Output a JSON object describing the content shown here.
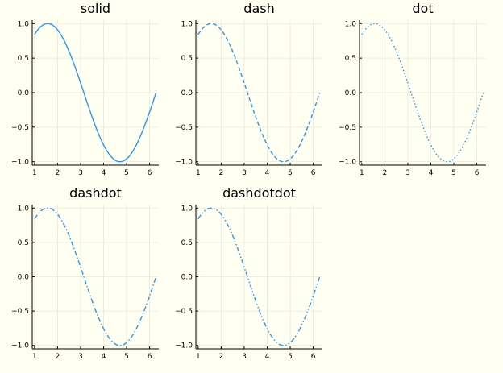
{
  "colors": {
    "series": "#2f96e6",
    "background": "#fffff2"
  },
  "chart_data": [
    {
      "type": "line",
      "title": "solid",
      "line_style": "solid",
      "x_function": "x",
      "y_function": "sin(x)",
      "x": [
        1.0,
        1.6,
        2.2,
        2.8,
        3.4,
        4.0,
        4.6,
        5.2,
        5.8,
        6.28
      ],
      "y": [
        0.84,
        1.0,
        0.81,
        0.33,
        -0.26,
        -0.76,
        -0.99,
        -0.88,
        -0.46,
        0.0
      ],
      "xlim": [
        0.9,
        6.4
      ],
      "ylim": [
        -1.05,
        1.05
      ],
      "xticks": [
        1,
        2,
        3,
        4,
        5,
        6
      ],
      "yticks": [
        -1.0,
        -0.5,
        0.0,
        0.5,
        1.0
      ],
      "xtick_labels": [
        "1",
        "2",
        "3",
        "4",
        "5",
        "6"
      ],
      "ytick_labels": [
        "−1.0",
        "−0.5",
        "0.0",
        "0.5",
        "1.0"
      ],
      "grid": true,
      "legend": false
    },
    {
      "type": "line",
      "title": "dash",
      "line_style": "dash",
      "x_function": "x",
      "y_function": "sin(x)",
      "x": [
        1.0,
        1.6,
        2.2,
        2.8,
        3.4,
        4.0,
        4.6,
        5.2,
        5.8,
        6.28
      ],
      "y": [
        0.84,
        1.0,
        0.81,
        0.33,
        -0.26,
        -0.76,
        -0.99,
        -0.88,
        -0.46,
        0.0
      ],
      "xlim": [
        0.9,
        6.4
      ],
      "ylim": [
        -1.05,
        1.05
      ],
      "xticks": [
        1,
        2,
        3,
        4,
        5,
        6
      ],
      "yticks": [
        -1.0,
        -0.5,
        0.0,
        0.5,
        1.0
      ],
      "xtick_labels": [
        "1",
        "2",
        "3",
        "4",
        "5",
        "6"
      ],
      "ytick_labels": [
        "−1.0",
        "−0.5",
        "0.0",
        "0.5",
        "1.0"
      ],
      "grid": true,
      "legend": false
    },
    {
      "type": "line",
      "title": "dot",
      "line_style": "dot",
      "x_function": "x",
      "y_function": "sin(x)",
      "x": [
        1.0,
        1.6,
        2.2,
        2.8,
        3.4,
        4.0,
        4.6,
        5.2,
        5.8,
        6.28
      ],
      "y": [
        0.84,
        1.0,
        0.81,
        0.33,
        -0.26,
        -0.76,
        -0.99,
        -0.88,
        -0.46,
        0.0
      ],
      "xlim": [
        0.9,
        6.4
      ],
      "ylim": [
        -1.05,
        1.05
      ],
      "xticks": [
        1,
        2,
        3,
        4,
        5,
        6
      ],
      "yticks": [
        -1.0,
        -0.5,
        0.0,
        0.5,
        1.0
      ],
      "xtick_labels": [
        "1",
        "2",
        "3",
        "4",
        "5",
        "6"
      ],
      "ytick_labels": [
        "−1.0",
        "−0.5",
        "0.0",
        "0.5",
        "1.0"
      ],
      "grid": true,
      "legend": false
    },
    {
      "type": "line",
      "title": "dashdot",
      "line_style": "dashdot",
      "x_function": "x",
      "y_function": "sin(x)",
      "x": [
        1.0,
        1.6,
        2.2,
        2.8,
        3.4,
        4.0,
        4.6,
        5.2,
        5.8,
        6.28
      ],
      "y": [
        0.84,
        1.0,
        0.81,
        0.33,
        -0.26,
        -0.76,
        -0.99,
        -0.88,
        -0.46,
        0.0
      ],
      "xlim": [
        0.9,
        6.4
      ],
      "ylim": [
        -1.05,
        1.05
      ],
      "xticks": [
        1,
        2,
        3,
        4,
        5,
        6
      ],
      "yticks": [
        -1.0,
        -0.5,
        0.0,
        0.5,
        1.0
      ],
      "xtick_labels": [
        "1",
        "2",
        "3",
        "4",
        "5",
        "6"
      ],
      "ytick_labels": [
        "−1.0",
        "−0.5",
        "0.0",
        "0.5",
        "1.0"
      ],
      "grid": true,
      "legend": false
    },
    {
      "type": "line",
      "title": "dashdotdot",
      "line_style": "dashdotdot",
      "x_function": "x",
      "y_function": "sin(x)",
      "x": [
        1.0,
        1.6,
        2.2,
        2.8,
        3.4,
        4.0,
        4.6,
        5.2,
        5.8,
        6.28
      ],
      "y": [
        0.84,
        1.0,
        0.81,
        0.33,
        -0.26,
        -0.76,
        -0.99,
        -0.88,
        -0.46,
        0.0
      ],
      "xlim": [
        0.9,
        6.4
      ],
      "ylim": [
        -1.05,
        1.05
      ],
      "xticks": [
        1,
        2,
        3,
        4,
        5,
        6
      ],
      "yticks": [
        -1.0,
        -0.5,
        0.0,
        0.5,
        1.0
      ],
      "xtick_labels": [
        "1",
        "2",
        "3",
        "4",
        "5",
        "6"
      ],
      "ytick_labels": [
        "−1.0",
        "−0.5",
        "0.0",
        "0.5",
        "1.0"
      ],
      "grid": true,
      "legend": false
    }
  ]
}
